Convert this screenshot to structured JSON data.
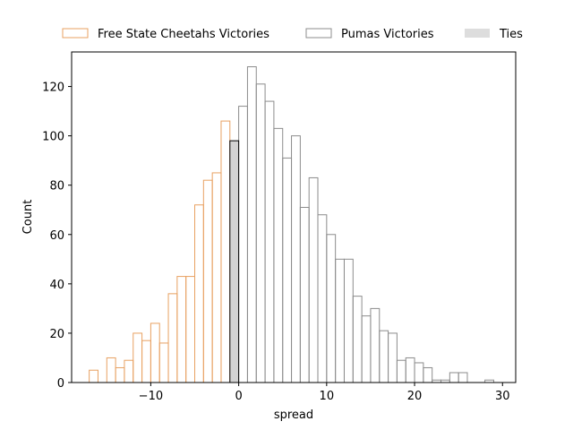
{
  "chart_data": {
    "type": "histogram",
    "title": "",
    "xlabel": "spread",
    "ylabel": "Count",
    "xlim": [
      -19,
      31.5
    ],
    "ylim": [
      0,
      134
    ],
    "xticks": [
      -10,
      0,
      10,
      20,
      30
    ],
    "yticks": [
      0,
      20,
      40,
      60,
      80,
      100,
      120
    ],
    "xtick_labels": [
      "−10",
      "0",
      "10",
      "20",
      "30"
    ],
    "ytick_labels": [
      "0",
      "20",
      "40",
      "60",
      "80",
      "100",
      "120"
    ],
    "bin_width": 1,
    "grid": false,
    "legend_position": "top, outside plot, horizontal",
    "series": [
      {
        "name": "Free State Cheetahs Victories",
        "edge_color": "#E8A162",
        "fill_color": "none",
        "bins": [
          {
            "x0": -17,
            "count": 5
          },
          {
            "x0": -16,
            "count": 0
          },
          {
            "x0": -15,
            "count": 10
          },
          {
            "x0": -14,
            "count": 6
          },
          {
            "x0": -13,
            "count": 9
          },
          {
            "x0": -12,
            "count": 20
          },
          {
            "x0": -11,
            "count": 17
          },
          {
            "x0": -10,
            "count": 24
          },
          {
            "x0": -9,
            "count": 16
          },
          {
            "x0": -8,
            "count": 36
          },
          {
            "x0": -7,
            "count": 43
          },
          {
            "x0": -6,
            "count": 43
          },
          {
            "x0": -5,
            "count": 72
          },
          {
            "x0": -4,
            "count": 82
          },
          {
            "x0": -3,
            "count": 85
          },
          {
            "x0": -2,
            "count": 106
          }
        ]
      },
      {
        "name": "Pumas Victories",
        "edge_color": "#8C8C8C",
        "fill_color": "none",
        "bins": [
          {
            "x0": 0,
            "count": 112
          },
          {
            "x0": 1,
            "count": 128
          },
          {
            "x0": 2,
            "count": 121
          },
          {
            "x0": 3,
            "count": 114
          },
          {
            "x0": 4,
            "count": 103
          },
          {
            "x0": 5,
            "count": 91
          },
          {
            "x0": 6,
            "count": 100
          },
          {
            "x0": 7,
            "count": 71
          },
          {
            "x0": 8,
            "count": 83
          },
          {
            "x0": 9,
            "count": 68
          },
          {
            "x0": 10,
            "count": 60
          },
          {
            "x0": 11,
            "count": 50
          },
          {
            "x0": 12,
            "count": 50
          },
          {
            "x0": 13,
            "count": 35
          },
          {
            "x0": 14,
            "count": 27
          },
          {
            "x0": 15,
            "count": 30
          },
          {
            "x0": 16,
            "count": 21
          },
          {
            "x0": 17,
            "count": 20
          },
          {
            "x0": 18,
            "count": 9
          },
          {
            "x0": 19,
            "count": 10
          },
          {
            "x0": 20,
            "count": 8
          },
          {
            "x0": 21,
            "count": 6
          },
          {
            "x0": 22,
            "count": 1
          },
          {
            "x0": 23,
            "count": 1
          },
          {
            "x0": 24,
            "count": 4
          },
          {
            "x0": 25,
            "count": 4
          },
          {
            "x0": 26,
            "count": 0
          },
          {
            "x0": 27,
            "count": 0
          },
          {
            "x0": 28,
            "count": 1
          }
        ]
      },
      {
        "name": "Ties",
        "edge_color": "#000000",
        "fill_color": "#D3D3D3",
        "legend_fill": "#DDDDDD",
        "bins": [
          {
            "x0": -1,
            "count": 98
          }
        ]
      }
    ]
  }
}
